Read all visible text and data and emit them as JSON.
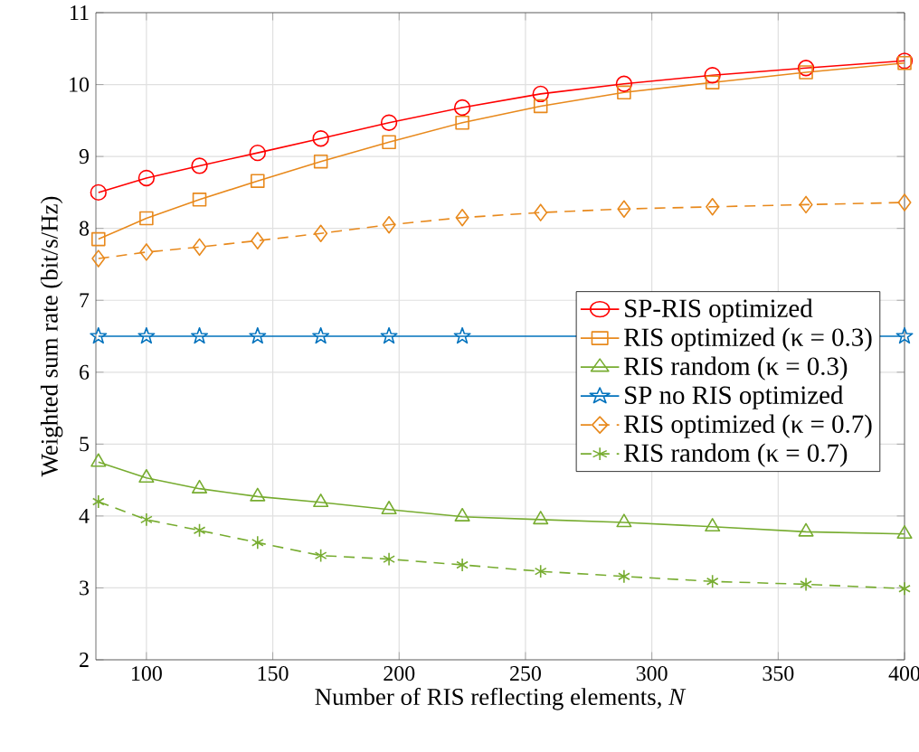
{
  "chart_data": {
    "type": "line",
    "xlabel": "Number of RIS reflecting elements, *N*",
    "ylabel": "Weighted sum rate (bit/s/Hz)",
    "x": [
      81,
      100,
      121,
      144,
      169,
      196,
      225,
      256,
      289,
      324,
      361,
      400
    ],
    "series": [
      {
        "name": "SP-RIS optimized",
        "color": "#ff0000",
        "marker": "circle",
        "line_style": "solid",
        "values": [
          8.5,
          8.7,
          8.87,
          9.05,
          9.25,
          9.47,
          9.68,
          9.87,
          10.01,
          10.13,
          10.23,
          10.33
        ]
      },
      {
        "name": "RIS optimized (κ = 0.3)",
        "color": "#e8891c",
        "marker": "square",
        "line_style": "solid",
        "values": [
          7.85,
          8.14,
          8.4,
          8.66,
          8.93,
          9.2,
          9.47,
          9.7,
          9.89,
          10.03,
          10.17,
          10.3
        ]
      },
      {
        "name": "RIS random (κ = 0.3)",
        "color": "#77ac30",
        "marker": "triangle",
        "line_style": "solid",
        "values": [
          4.75,
          4.53,
          4.38,
          4.27,
          4.19,
          4.09,
          3.99,
          3.95,
          3.91,
          3.85,
          3.78,
          3.75
        ]
      },
      {
        "name": "SP no RIS optimized",
        "color": "#0072bd",
        "marker": "star",
        "line_style": "solid",
        "values": [
          6.5,
          6.5,
          6.5,
          6.5,
          6.5,
          6.5,
          6.5,
          null,
          null,
          null,
          null,
          6.5
        ]
      },
      {
        "name": "RIS optimized (κ = 0.7)",
        "color": "#e8891c",
        "marker": "diamond",
        "line_style": "dashed",
        "values": [
          7.58,
          7.67,
          7.74,
          7.83,
          7.93,
          8.05,
          8.15,
          8.22,
          8.27,
          8.3,
          8.33,
          8.36
        ]
      },
      {
        "name": "RIS random (κ = 0.7)",
        "color": "#77ac30",
        "marker": "cross",
        "line_style": "dashed",
        "values": [
          4.2,
          3.95,
          3.8,
          3.63,
          3.45,
          3.4,
          3.32,
          3.23,
          3.16,
          3.09,
          3.05,
          2.99
        ]
      }
    ],
    "xlim": [
      80,
      400
    ],
    "xticks": [
      100,
      150,
      200,
      250,
      300,
      350,
      400
    ],
    "ylim": [
      2,
      11
    ],
    "yticks": [
      2,
      3,
      4,
      5,
      6,
      7,
      8,
      9,
      10,
      11
    ],
    "grid": true,
    "legend": "right"
  }
}
